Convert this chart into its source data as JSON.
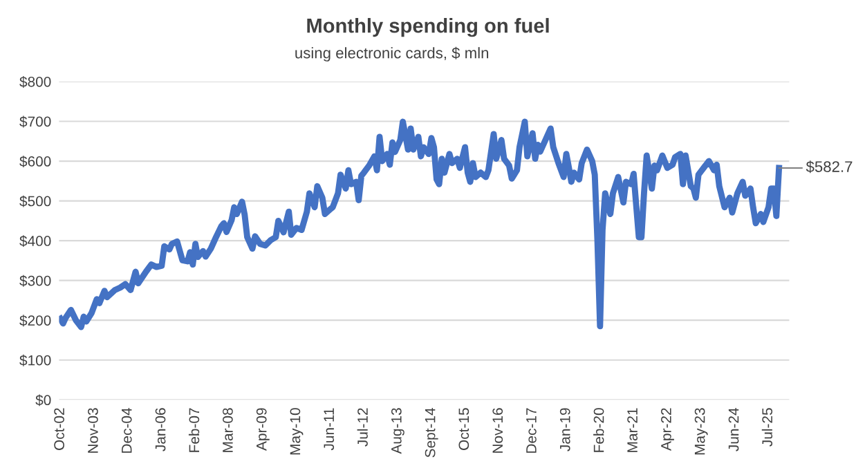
{
  "chart_data": {
    "type": "line",
    "title": "Monthly spending on fuel",
    "subtitle": "using electronic cards, $ mln",
    "x": [
      "2002-10",
      "2002-11",
      "2002-12",
      "2003-02",
      "2003-04",
      "2003-06",
      "2003-07",
      "2003-08",
      "2003-10",
      "2003-12",
      "2004-01",
      "2004-03",
      "2004-04",
      "2004-07",
      "2004-09",
      "2004-11",
      "2005-01",
      "2005-03",
      "2005-04",
      "2005-07",
      "2005-09",
      "2005-11",
      "2006-01",
      "2006-02",
      "2006-04",
      "2006-05",
      "2006-07",
      "2006-09",
      "2006-11",
      "2006-12",
      "2007-01",
      "2007-02",
      "2007-03",
      "2007-05",
      "2007-06",
      "2007-08",
      "2007-10",
      "2007-12",
      "2008-01",
      "2008-02",
      "2008-04",
      "2008-05",
      "2008-06",
      "2008-08",
      "2008-09",
      "2008-10",
      "2008-12",
      "2009-01",
      "2009-03",
      "2009-05",
      "2009-07",
      "2009-09",
      "2009-10",
      "2009-12",
      "2010-02",
      "2010-03",
      "2010-05",
      "2010-07",
      "2010-09",
      "2010-10",
      "2010-12",
      "2011-01",
      "2011-03",
      "2011-04",
      "2011-06",
      "2011-07",
      "2011-09",
      "2011-10",
      "2011-12",
      "2012-01",
      "2012-02",
      "2012-04",
      "2012-05",
      "2012-06",
      "2012-07",
      "2012-09",
      "2012-11",
      "2012-12",
      "2013-01",
      "2013-02",
      "2013-04",
      "2013-05",
      "2013-06",
      "2013-07",
      "2013-09",
      "2013-10",
      "2013-11",
      "2013-12",
      "2014-01",
      "2014-02",
      "2014-04",
      "2014-05",
      "2014-06",
      "2014-08",
      "2014-09",
      "2014-10",
      "2014-11",
      "2014-12",
      "2015-01",
      "2015-02",
      "2015-04",
      "2015-05",
      "2015-07",
      "2015-08",
      "2015-10",
      "2015-11",
      "2015-12",
      "2016-01",
      "2016-02",
      "2016-04",
      "2016-06",
      "2016-07",
      "2016-09",
      "2016-10",
      "2016-12",
      "2017-01",
      "2017-03",
      "2017-04",
      "2017-06",
      "2017-07",
      "2017-09",
      "2017-10",
      "2017-12",
      "2018-01",
      "2018-02",
      "2018-03",
      "2018-05",
      "2018-07",
      "2018-08",
      "2018-10",
      "2018-12",
      "2019-01",
      "2019-02",
      "2019-03",
      "2019-04",
      "2019-06",
      "2019-07",
      "2019-09",
      "2019-11",
      "2019-12",
      "2020-01",
      "2020-02",
      "2020-03",
      "2020-04",
      "2020-06",
      "2020-07",
      "2020-09",
      "2020-11",
      "2020-12",
      "2021-02",
      "2021-03",
      "2021-05",
      "2021-06",
      "2021-07",
      "2021-08",
      "2021-10",
      "2021-11",
      "2021-12",
      "2022-02",
      "2022-04",
      "2022-06",
      "2022-07",
      "2022-09",
      "2022-10",
      "2022-11",
      "2023-01",
      "2023-02",
      "2023-03",
      "2023-04",
      "2023-06",
      "2023-08",
      "2023-10",
      "2023-11",
      "2023-12",
      "2024-02",
      "2024-04",
      "2024-05",
      "2024-07",
      "2024-09",
      "2024-10",
      "2024-12",
      "2025-01",
      "2025-02",
      "2025-04",
      "2025-05",
      "2025-07",
      "2025-08",
      "2025-09",
      "2025-10",
      "2025-11"
    ],
    "series": [
      {
        "color": "#4472c4",
        "values": [
          204,
          192,
          206,
          226,
          200,
          183,
          209,
          197,
          218,
          253,
          243,
          274,
          258,
          276,
          282,
          291,
          276,
          322,
          293,
          322,
          340,
          334,
          337,
          386,
          378,
          392,
          398,
          351,
          348,
          371,
          340,
          392,
          359,
          374,
          360,
          380,
          409,
          436,
          444,
          422,
          452,
          484,
          467,
          498,
          465,
          409,
          380,
          411,
          392,
          388,
          401,
          409,
          450,
          421,
          473,
          415,
          432,
          427,
          473,
          519,
          484,
          537,
          508,
          467,
          479,
          484,
          519,
          566,
          531,
          577,
          542,
          548,
          502,
          563,
          571,
          589,
          612,
          577,
          661,
          600,
          618,
          591,
          647,
          623,
          653,
          699,
          664,
          629,
          682,
          629,
          661,
          612,
          635,
          618,
          658,
          635,
          554,
          542,
          606,
          571,
          618,
          595,
          606,
          583,
          635,
          571,
          548,
          595,
          560,
          571,
          560,
          577,
          668,
          606,
          653,
          606,
          589,
          556,
          577,
          635,
          699,
          612,
          670,
          606,
          641,
          624,
          653,
          682,
          635,
          595,
          560,
          618,
          583,
          548,
          571,
          554,
          595,
          629,
          600,
          566,
          403,
          185,
          427,
          519,
          467,
          519,
          560,
          496,
          548,
          542,
          568,
          409,
          409,
          519,
          614,
          531,
          589,
          577,
          614,
          583,
          591,
          610,
          618,
          542,
          614,
          537,
          531,
          508,
          566,
          583,
          600,
          577,
          591,
          537,
          484,
          508,
          471,
          519,
          548,
          513,
          531,
          484,
          444,
          467,
          447,
          484,
          531,
          531,
          462,
          582.7
        ]
      }
    ],
    "xlim": [
      "2002-09-15",
      "2026-03"
    ],
    "xticks": [
      {
        "value": "2002-10",
        "label": "Oct-02"
      },
      {
        "value": "2003-11",
        "label": "Nov-03"
      },
      {
        "value": "2004-12",
        "label": "Dec-04"
      },
      {
        "value": "2006-01",
        "label": "Jan-06"
      },
      {
        "value": "2007-02",
        "label": "Feb-07"
      },
      {
        "value": "2008-03",
        "label": "Mar-08"
      },
      {
        "value": "2009-04",
        "label": "Apr-09"
      },
      {
        "value": "2010-05",
        "label": "May-10"
      },
      {
        "value": "2011-06",
        "label": "Jun-11"
      },
      {
        "value": "2012-07",
        "label": "Jul-12"
      },
      {
        "value": "2013-08",
        "label": "Aug-13"
      },
      {
        "value": "2014-09",
        "label": "Sept-14"
      },
      {
        "value": "2015-10",
        "label": "Oct-15"
      },
      {
        "value": "2016-11",
        "label": "Nov-16"
      },
      {
        "value": "2017-12",
        "label": "Dec-17"
      },
      {
        "value": "2019-01",
        "label": "Jan-19"
      },
      {
        "value": "2020-02",
        "label": "Feb-20"
      },
      {
        "value": "2021-03",
        "label": "Mar-21"
      },
      {
        "value": "2022-04",
        "label": "Apr-22"
      },
      {
        "value": "2023-05",
        "label": "May-23"
      },
      {
        "value": "2024-06",
        "label": "Jun-24"
      },
      {
        "value": "2025-07",
        "label": "Jul-25"
      }
    ],
    "ylim": [
      0,
      800
    ],
    "yticks": [
      {
        "value": 0,
        "label": "$0"
      },
      {
        "value": 100,
        "label": "$100"
      },
      {
        "value": 200,
        "label": "$200"
      },
      {
        "value": 300,
        "label": "$300"
      },
      {
        "value": 400,
        "label": "$400"
      },
      {
        "value": 500,
        "label": "$500"
      },
      {
        "value": 600,
        "label": "$600"
      },
      {
        "value": 700,
        "label": "$700"
      },
      {
        "value": 800,
        "label": "$800"
      }
    ],
    "grid": "y",
    "legend": false,
    "marker": "none",
    "line_style": "solid",
    "annotations": [
      {
        "text": "$582.7",
        "x": "2025-11",
        "y": 582.7
      }
    ]
  }
}
